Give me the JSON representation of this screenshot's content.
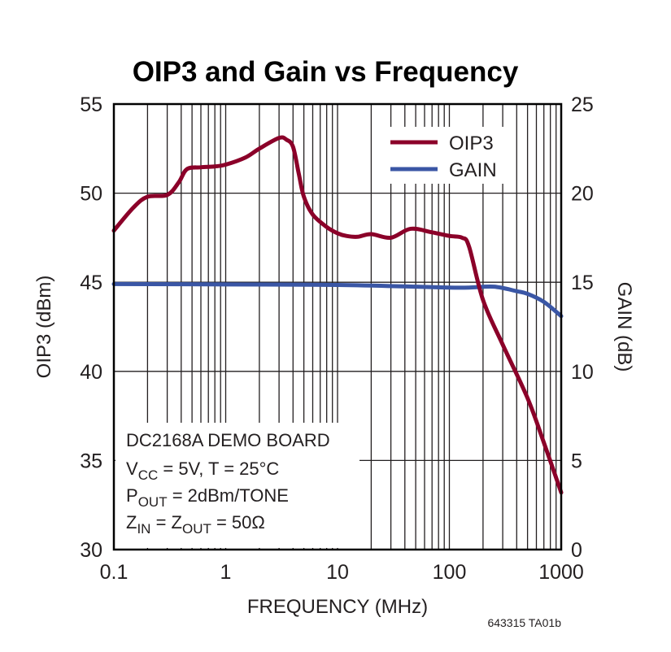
{
  "chart_data": {
    "type": "line",
    "title": "OIP3 and Gain vs Frequency",
    "xlabel": "FREQUENCY (MHz)",
    "ylabel": "OIP3 (dBm)",
    "y2label": "GAIN (dB)",
    "xscale": "log",
    "xlim": [
      0.1,
      1000
    ],
    "ylim": [
      30,
      55
    ],
    "y2lim": [
      0,
      25
    ],
    "xticks": [
      "0.1",
      "1",
      "10",
      "100",
      "1000"
    ],
    "yticks": [
      "30",
      "35",
      "40",
      "45",
      "50",
      "55"
    ],
    "y2ticks": [
      "0",
      "5",
      "10",
      "15",
      "20",
      "25"
    ],
    "grid": true,
    "legend_placement": "top-right",
    "series": [
      {
        "name": "OIP3",
        "axis": "left",
        "color": "#8b0029",
        "x": [
          0.1,
          0.15,
          0.2,
          0.3,
          0.38,
          0.45,
          0.6,
          0.8,
          1,
          1.5,
          2,
          3,
          3.5,
          4,
          4.5,
          5,
          6,
          8,
          10,
          12,
          15,
          20,
          30,
          45,
          70,
          100,
          130,
          150,
          200,
          300,
          500,
          700,
          1000
        ],
        "y": [
          47.9,
          49.2,
          49.8,
          49.9,
          50.6,
          51.35,
          51.45,
          51.5,
          51.6,
          52.0,
          52.5,
          53.1,
          53.0,
          52.6,
          51.1,
          49.8,
          48.8,
          48.1,
          47.75,
          47.6,
          47.55,
          47.7,
          47.5,
          48.0,
          47.8,
          47.6,
          47.5,
          47.0,
          44.0,
          41.5,
          38.5,
          36.0,
          33.2
        ]
      },
      {
        "name": "GAIN",
        "axis": "right",
        "color": "#3a56a5",
        "x": [
          0.1,
          1,
          10,
          50,
          100,
          150,
          250,
          400,
          500,
          700,
          1000
        ],
        "y": [
          14.9,
          14.88,
          14.85,
          14.75,
          14.7,
          14.7,
          14.75,
          14.5,
          14.35,
          13.9,
          13.1
        ]
      }
    ],
    "annotations": {
      "board": "DC2168A DEMO BOARD",
      "line2": {
        "pre": "V",
        "sub": "CC",
        "post": " = 5V, T = 25°C"
      },
      "line3": {
        "pre": "P",
        "sub": "OUT",
        "post": " = 2dBm/TONE"
      },
      "line4": {
        "pre": "Z",
        "sub": "IN",
        "mid": " = Z",
        "sub2": "OUT",
        "post": " = 50Ω"
      }
    },
    "footnote": "643315 TA01b"
  }
}
